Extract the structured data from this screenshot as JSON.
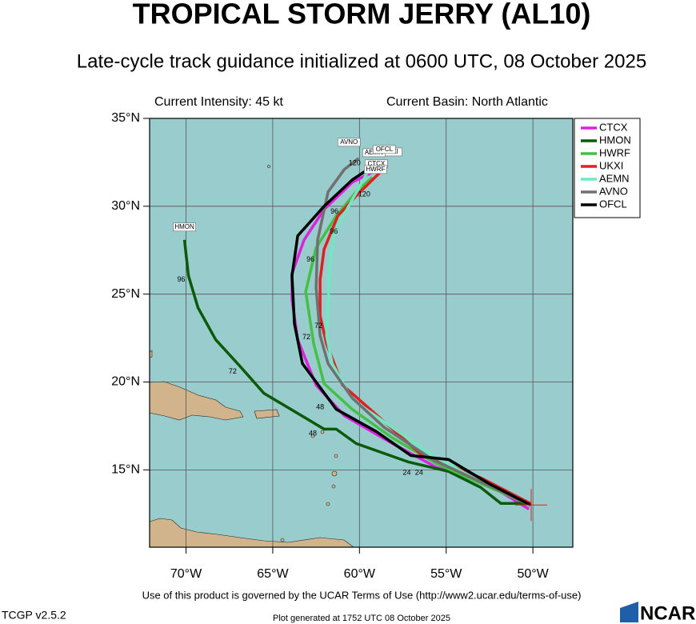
{
  "chart_data": {
    "type": "track",
    "title": "TROPICAL STORM JERRY (AL10)",
    "subtitle": "Late-cycle track guidance initialized at 0600 UTC, 08 October 2025",
    "intensity_text": "Current Intensity: 45 kt",
    "basin_text": "Current Basin: North Atlantic",
    "xlim": [
      -72.1,
      -47.7
    ],
    "ylim": [
      10.6,
      35
    ],
    "xticks": [
      {
        "value": -70,
        "label": "70°W"
      },
      {
        "value": -65,
        "label": "65°W"
      },
      {
        "value": -60,
        "label": "60°W"
      },
      {
        "value": -55,
        "label": "55°W"
      },
      {
        "value": -50,
        "label": "50°W"
      }
    ],
    "yticks": [
      {
        "value": 15,
        "label": "15°N"
      },
      {
        "value": 20,
        "label": "20°N"
      },
      {
        "value": 25,
        "label": "25°N"
      },
      {
        "value": 30,
        "label": "30°N"
      },
      {
        "value": 35,
        "label": "35°N"
      }
    ],
    "grid": true,
    "legend": "top-right",
    "current_position": {
      "lon": -50.1,
      "lat": 13.0
    },
    "series": [
      {
        "name": "CTCX",
        "color": "#e020e0",
        "x": [
          -50.23,
          -53.01,
          -55.56,
          -58.1,
          -60.88,
          -62.5,
          -63.56,
          -63.89,
          -63.89,
          -63.19,
          -62.04,
          -60.42,
          -59.03
        ],
        "y": [
          12.77,
          14.45,
          15.14,
          16.5,
          18.09,
          19.82,
          22.41,
          24.68,
          26.18,
          28.09,
          29.82,
          31.36,
          32.05
        ]
      },
      {
        "name": "HMON",
        "color": "#0a5a0a",
        "x": [
          -50.14,
          -51.85,
          -53.01,
          -54.86,
          -57.18,
          -60.19,
          -61.34,
          -62.04,
          -63.19,
          -65.51,
          -66.9,
          -68.29,
          -69.31,
          -69.86,
          -70.09
        ],
        "y": [
          13.09,
          13.09,
          14.0,
          14.91,
          15.45,
          16.5,
          17.32,
          17.32,
          18.0,
          19.36,
          20.91,
          22.41,
          24.23,
          26.05,
          28.09
        ]
      },
      {
        "name": "HWRF",
        "color": "#44c044",
        "x": [
          -50.14,
          -53.01,
          -55.56,
          -58.1,
          -60.42,
          -62.04,
          -62.64,
          -63.1,
          -62.5,
          -61.34,
          -60.19,
          -59.26
        ],
        "y": [
          13.0,
          14.23,
          15.36,
          16.82,
          18.45,
          19.91,
          22.18,
          25.14,
          27.64,
          29.45,
          30.82,
          31.64
        ]
      },
      {
        "name": "UKXI",
        "color": "#e02020",
        "x": [
          -50.14,
          -53.01,
          -56.48,
          -58.56,
          -60.97,
          -61.9,
          -62.27,
          -62.27,
          -62.04,
          -61.25,
          -60.19,
          -58.56
        ],
        "y": [
          13.09,
          14.55,
          15.91,
          17.73,
          19.82,
          22.18,
          23.77,
          25.82,
          27.55,
          29.45,
          30.59,
          32.18
        ]
      },
      {
        "name": "AEMN",
        "color": "#70e8c0",
        "x": [
          -50.14,
          -53.01,
          -55.79,
          -58.1,
          -60.42,
          -61.57,
          -61.9,
          -61.81,
          -61.71,
          -61.44,
          -60.42,
          -59.26
        ],
        "y": [
          13.0,
          14.32,
          15.82,
          17.41,
          19.0,
          21.05,
          22.64,
          24.45,
          26.73,
          28.55,
          30.36,
          32.41
        ]
      },
      {
        "name": "AVNO",
        "color": "#707070",
        "x": [
          -50.14,
          -53.01,
          -55.79,
          -58.56,
          -60.42,
          -61.81,
          -62.27,
          -62.5,
          -62.41,
          -61.81,
          -60.88,
          -60.05
        ],
        "y": [
          13.0,
          14.32,
          15.59,
          17.41,
          19.09,
          21.05,
          22.64,
          25.36,
          28.09,
          30.82,
          32.09,
          32.73
        ]
      },
      {
        "name": "OFCL",
        "color": "#000000",
        "x": [
          -50.14,
          -52.55,
          -54.86,
          -57.04,
          -59.03,
          -61.34,
          -63.29,
          -63.75,
          -63.89,
          -63.56,
          -62.04,
          -60.42,
          -59.03
        ],
        "y": [
          13.0,
          14.23,
          15.59,
          15.82,
          17.18,
          18.45,
          21.05,
          23.32,
          26.05,
          28.32,
          30.0,
          31.5,
          32.41
        ]
      }
    ],
    "hour_labels": [
      {
        "hour": 24,
        "lon": -57.27,
        "lat": 14.82
      },
      {
        "hour": 24,
        "lon": -56.57,
        "lat": 14.82
      },
      {
        "hour": 48,
        "lon": -62.27,
        "lat": 18.55
      },
      {
        "hour": 48,
        "lon": -62.69,
        "lat": 17.05
      },
      {
        "hour": 72,
        "lon": -67.31,
        "lat": 20.59
      },
      {
        "hour": 72,
        "lon": -63.06,
        "lat": 22.55
      },
      {
        "hour": 72,
        "lon": -62.36,
        "lat": 23.18
      },
      {
        "hour": 96,
        "lon": -70.28,
        "lat": 25.82
      },
      {
        "hour": 96,
        "lon": -62.82,
        "lat": 26.95
      },
      {
        "hour": 96,
        "lon": -61.44,
        "lat": 29.68
      },
      {
        "hour": 96,
        "lon": -61.48,
        "lat": 28.55
      },
      {
        "hour": 120,
        "lon": -60.28,
        "lat": 32.45
      },
      {
        "hour": 120,
        "lon": -59.72,
        "lat": 30.68
      }
    ],
    "terms_text": "Use of this product is governed by the UCAR Terms of Use (http://www2.ucar.edu/terms-of-use)",
    "version_text": "TCGP v2.5.2",
    "generated_text": "Plot generated at 1752 UTC   08 October 2025",
    "logo_text": "NCAR"
  }
}
